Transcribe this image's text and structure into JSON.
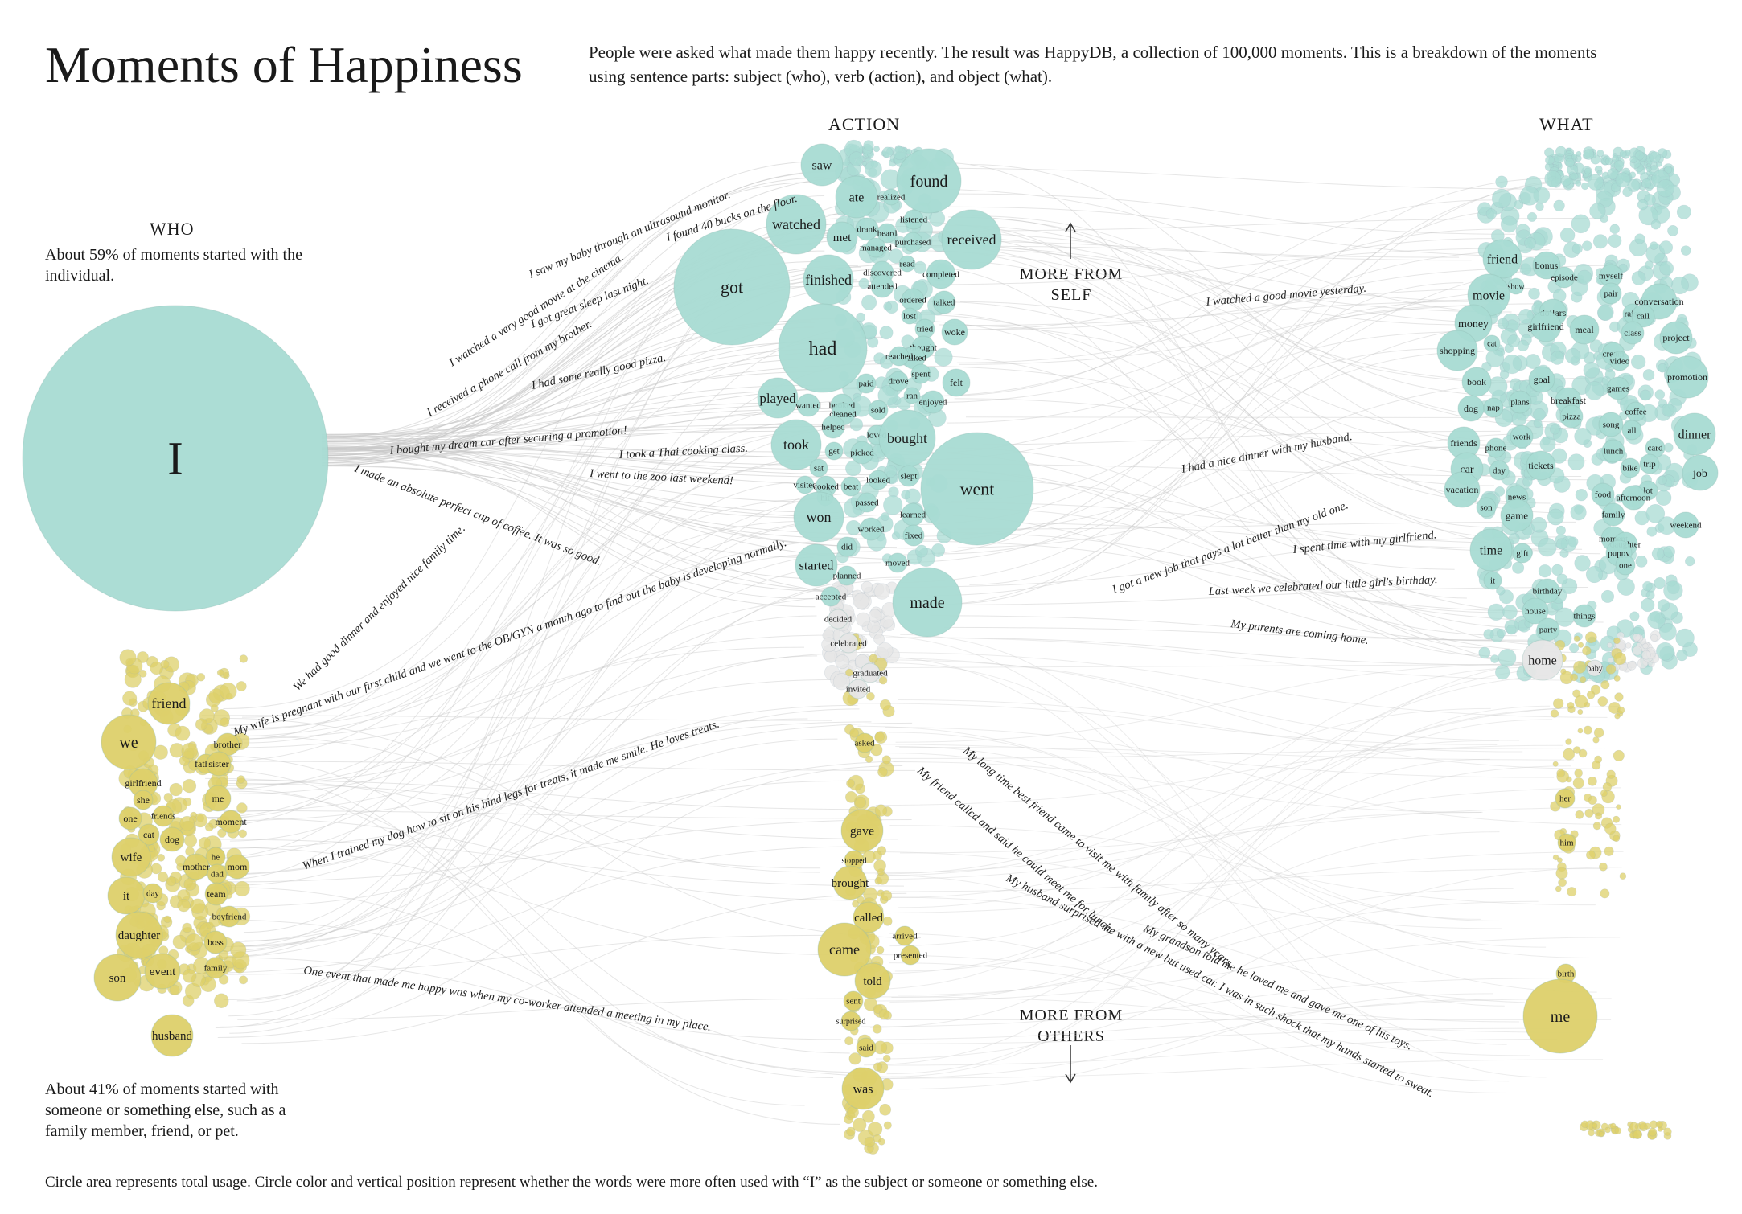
{
  "header": {
    "title": "Moments of Happiness",
    "intro": "People were asked what made them happy recently. The result was HappyDB, a collection of 100,000 moments. This is a breakdown of the moments using sentence parts: subject (who), verb (action), and object (what)."
  },
  "columns": {
    "who": "WHO",
    "action": "ACTION",
    "what": "WHAT"
  },
  "notes": {
    "self_share": "About 59% of moments started with the individual.",
    "others_share": "About 41% of moments started with someone or something else, such as a family member, friend, or pet.",
    "more_self": "MORE FROM SELF",
    "more_others": "MORE FROM OTHERS",
    "footer": "Circle area represents total usage. Circle color and vertical position represent whether the words were more often used with “I” as the subject or someone or something else."
  },
  "colors": {
    "self": "#a8dbd3",
    "mid": "#e6e6e6",
    "others": "#ddd06a",
    "text": "#1a1a1a",
    "link": "#c8c8c8"
  },
  "words": {
    "who_self": [
      "I"
    ],
    "who_others": [
      "friend",
      "we",
      "brother",
      "father",
      "girlfriend",
      "sister",
      "she",
      "one",
      "friends",
      "cat",
      "dog",
      "me",
      "moment",
      "wife",
      "he",
      "mother",
      "dad",
      "mom",
      "it",
      "day",
      "team",
      "daughter",
      "boyfriend",
      "boss",
      "event",
      "family",
      "son",
      "husband"
    ],
    "action_self": [
      "saw",
      "found",
      "ate",
      "realized",
      "watched",
      "drank",
      "listened",
      "heard",
      "met",
      "purchased",
      "managed",
      "received",
      "read",
      "got",
      "finished",
      "discovered",
      "completed",
      "attended",
      "ordered",
      "talked",
      "lost",
      "tried",
      "woke",
      "had",
      "thought",
      "walked",
      "reached",
      "spent",
      "paid",
      "drove",
      "felt",
      "played",
      "ran",
      "enjoyed",
      "wanted",
      "booked",
      "cleaned",
      "sold",
      "helped",
      "loved",
      "bought",
      "get",
      "picked",
      "took",
      "sat",
      "slept",
      "looked",
      "went",
      "visited",
      "cooked",
      "beat",
      "hit",
      "passed",
      "learned",
      "won",
      "worked",
      "fixed",
      "did",
      "moved",
      "started",
      "planned",
      "accepted",
      "made"
    ],
    "action_mid": [
      "decided",
      "celebrated",
      "graduated",
      "invited"
    ],
    "action_others": [
      "asked",
      "gave",
      "stopped",
      "brought",
      "called",
      "arrived",
      "came",
      "presented",
      "told",
      "sent",
      "surprised",
      "said",
      "was"
    ],
    "what_self": [
      "friend",
      "bonus",
      "show",
      "episode",
      "myself",
      "movie",
      "pair",
      "conversation",
      "dollars",
      "money",
      "girlfriend",
      "meal",
      "raise",
      "call",
      "class",
      "project",
      "shopping",
      "cat",
      "cream",
      "video",
      "promotion",
      "book",
      "goal",
      "games",
      "dog",
      "nap",
      "plans",
      "breakfast",
      "coffee",
      "pizza",
      "song",
      "all",
      "dinner",
      "friends",
      "phone",
      "work",
      "lunch",
      "card",
      "bike",
      "trip",
      "car",
      "day",
      "tickets",
      "job",
      "vacation",
      "lot",
      "food",
      "afternoon",
      "news",
      "son",
      "game",
      "family",
      "weekend",
      "moment",
      "daughter",
      "time",
      "gift",
      "puppy",
      "one",
      "it",
      "birthday",
      "house",
      "things",
      "party"
    ],
    "what_mid": [
      "home",
      "baby"
    ],
    "what_others": [
      "her",
      "him",
      "birth",
      "me"
    ]
  },
  "sentences": [
    "I saw my baby through an ultrasound monitor.",
    "I found 40 bucks on the floor.",
    "I watched a very good movie at the cinema.",
    "I got great sleep last night.",
    "I received a phone call from my brother.",
    "I had some really good pizza.",
    "I bought my dream car after securing a promotion!",
    "I took a Thai cooking class.",
    "I went to the zoo last weekend!",
    "I made an absolute perfect cup of coffee. It was so good.",
    "We had good dinner and enjoyed nice family time.",
    "My wife is pregnant with our first child and we went to the OB/GYN a month ago to find out the baby is developing normally.",
    "When I trained my dog how to sit on his hind legs for treats, it made me smile. He loves treats.",
    "One event that made me happy was when my co-worker attended a meeting in my place.",
    "I watched a good movie yesterday.",
    "I had a nice dinner with my husband.",
    "I got a new job that pays a lot better than my old one.",
    "I spent time with my girlfriend.",
    "Last week we celebrated our little girl's birthday.",
    "My parents are coming home.",
    "My long time best friend came to visit me with family after so many years.",
    "My friend called and said he could meet me for lunch.",
    "My grandson told me he loved me and gave me one of his toys.",
    "My husband surprised me with a new but used car. I was in such shock that my hands started to sweat."
  ]
}
